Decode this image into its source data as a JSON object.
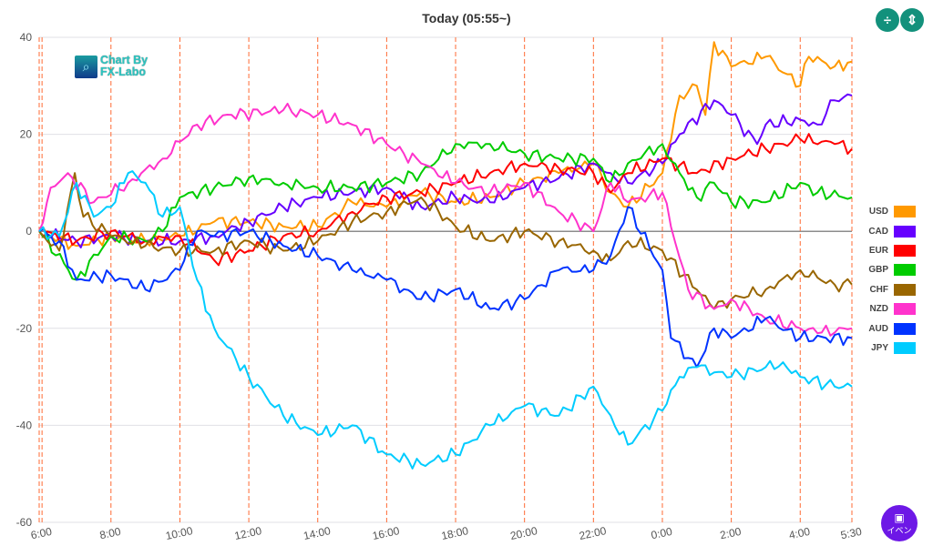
{
  "header": {
    "title": "Today  (05:55~)"
  },
  "toolbar": {
    "compress_icon": "compress-vertical-icon",
    "expand_icon": "expand-vertical-icon"
  },
  "logo": {
    "line1": "Chart By",
    "line2": "FX-Labo"
  },
  "event_button": {
    "label": "イベン",
    "icon": "calendar-icon",
    "color": "#6d18e6"
  },
  "chart_data": {
    "type": "line",
    "title": "Today  (05:55~)",
    "xlabel": "",
    "ylabel": "",
    "x_unit": "hours since 6:00",
    "xlim": [
      -0.083,
      23.5
    ],
    "ylim": [
      -60,
      40
    ],
    "yticks": [
      40,
      20,
      0,
      -20,
      -40,
      -60
    ],
    "xticks": [
      {
        "x": 0,
        "label": "6:00"
      },
      {
        "x": 2,
        "label": "8:00"
      },
      {
        "x": 4,
        "label": "10:00"
      },
      {
        "x": 6,
        "label": "12:00"
      },
      {
        "x": 8,
        "label": "14:00"
      },
      {
        "x": 10,
        "label": "16:00"
      },
      {
        "x": 12,
        "label": "18:00"
      },
      {
        "x": 14,
        "label": "20:00"
      },
      {
        "x": 16,
        "label": "22:00"
      },
      {
        "x": 18,
        "label": "0:00"
      },
      {
        "x": 20,
        "label": "2:00"
      },
      {
        "x": 22,
        "label": "4:00"
      },
      {
        "x": 23.5,
        "label": "5:30"
      }
    ],
    "grid": true,
    "legend_position": "right",
    "series": [
      {
        "name": "USD",
        "color": "#ff9900",
        "points": [
          [
            -0.083,
            0
          ],
          [
            1,
            -3
          ],
          [
            2,
            -1
          ],
          [
            3,
            -2
          ],
          [
            4,
            -1
          ],
          [
            5,
            2
          ],
          [
            6,
            2
          ],
          [
            7,
            1
          ],
          [
            8,
            1
          ],
          [
            9,
            6
          ],
          [
            10,
            5
          ],
          [
            11,
            8
          ],
          [
            12,
            6
          ],
          [
            13,
            7
          ],
          [
            14,
            10
          ],
          [
            15,
            12
          ],
          [
            16,
            14
          ],
          [
            16.5,
            8
          ],
          [
            17,
            5
          ],
          [
            18,
            12
          ],
          [
            18.5,
            28
          ],
          [
            19,
            30
          ],
          [
            19.25,
            24
          ],
          [
            19.5,
            39
          ],
          [
            20,
            34
          ],
          [
            21,
            36
          ],
          [
            22,
            30
          ],
          [
            22.25,
            36
          ],
          [
            23,
            34
          ],
          [
            23.5,
            35
          ]
        ]
      },
      {
        "name": "CAD",
        "color": "#6600ff",
        "points": [
          [
            -0.083,
            0
          ],
          [
            1,
            -2
          ],
          [
            2,
            -1
          ],
          [
            3,
            -2
          ],
          [
            4,
            -2
          ],
          [
            5,
            -1
          ],
          [
            6,
            2
          ],
          [
            7,
            5
          ],
          [
            8,
            7
          ],
          [
            9,
            8
          ],
          [
            10,
            9
          ],
          [
            11,
            5
          ],
          [
            12,
            7
          ],
          [
            13,
            6
          ],
          [
            14,
            9
          ],
          [
            15,
            11
          ],
          [
            16,
            14
          ],
          [
            16.5,
            12
          ],
          [
            17,
            10
          ],
          [
            18,
            14
          ],
          [
            18.5,
            20
          ],
          [
            19.5,
            27
          ],
          [
            20,
            24
          ],
          [
            20.75,
            18
          ],
          [
            21,
            22
          ],
          [
            22,
            23
          ],
          [
            22.5,
            22
          ],
          [
            23,
            27
          ],
          [
            23.5,
            28
          ]
        ]
      },
      {
        "name": "EUR",
        "color": "#ff0000",
        "points": [
          [
            -0.083,
            0
          ],
          [
            1,
            -2
          ],
          [
            2,
            0
          ],
          [
            3,
            -2
          ],
          [
            4,
            -1
          ],
          [
            5,
            -6
          ],
          [
            6,
            -4
          ],
          [
            7,
            -1
          ],
          [
            8,
            0
          ],
          [
            9,
            4
          ],
          [
            10,
            7
          ],
          [
            11,
            8
          ],
          [
            12,
            10
          ],
          [
            13,
            12
          ],
          [
            14,
            14
          ],
          [
            15,
            13
          ],
          [
            16,
            12
          ],
          [
            16.5,
            8
          ],
          [
            17,
            12
          ],
          [
            18,
            15
          ],
          [
            19,
            12
          ],
          [
            20,
            15
          ],
          [
            21,
            17
          ],
          [
            22,
            19
          ],
          [
            23,
            18
          ],
          [
            23.5,
            17
          ]
        ]
      },
      {
        "name": "GBP",
        "color": "#00cc00",
        "points": [
          [
            -0.083,
            0
          ],
          [
            1,
            -10
          ],
          [
            2,
            -1
          ],
          [
            3,
            -2
          ],
          [
            3.5,
            0
          ],
          [
            4,
            7
          ],
          [
            5,
            9
          ],
          [
            6,
            11
          ],
          [
            7,
            10
          ],
          [
            8,
            9
          ],
          [
            9,
            9
          ],
          [
            10,
            10
          ],
          [
            11,
            12
          ],
          [
            12,
            18
          ],
          [
            13,
            18
          ],
          [
            14,
            16
          ],
          [
            15,
            15
          ],
          [
            16,
            15
          ],
          [
            16.5,
            10
          ],
          [
            17,
            14
          ],
          [
            18,
            18
          ],
          [
            18.5,
            12
          ],
          [
            19,
            7
          ],
          [
            19.5,
            10
          ],
          [
            20,
            6
          ],
          [
            21,
            6
          ],
          [
            22,
            10
          ],
          [
            22.5,
            8
          ],
          [
            23.5,
            7
          ]
        ]
      },
      {
        "name": "CHF",
        "color": "#996600",
        "points": [
          [
            -0.083,
            0
          ],
          [
            0.5,
            -4
          ],
          [
            0.95,
            12
          ],
          [
            1.2,
            3
          ],
          [
            2,
            -1
          ],
          [
            3,
            -3
          ],
          [
            4,
            -4
          ],
          [
            5,
            -4
          ],
          [
            6,
            -2
          ],
          [
            7,
            -4
          ],
          [
            8,
            -2
          ],
          [
            9,
            2
          ],
          [
            10,
            4
          ],
          [
            11,
            7
          ],
          [
            12,
            1
          ],
          [
            13,
            -2
          ],
          [
            14,
            0
          ],
          [
            15,
            -2
          ],
          [
            16,
            -4
          ],
          [
            16.5,
            -6
          ],
          [
            17,
            -2
          ],
          [
            18,
            -4
          ],
          [
            19,
            -12
          ],
          [
            19.5,
            -16
          ],
          [
            20,
            -14
          ],
          [
            21,
            -12
          ],
          [
            22,
            -8
          ],
          [
            23,
            -11
          ],
          [
            23.5,
            -11
          ]
        ]
      },
      {
        "name": "NZD",
        "color": "#ff33cc",
        "points": [
          [
            -0.083,
            0
          ],
          [
            0.25,
            9
          ],
          [
            0.75,
            12
          ],
          [
            1.5,
            6
          ],
          [
            2.5,
            10
          ],
          [
            3.5,
            15
          ],
          [
            4.5,
            22
          ],
          [
            5.5,
            24
          ],
          [
            7,
            25
          ],
          [
            8,
            24
          ],
          [
            9,
            22
          ],
          [
            10,
            18
          ],
          [
            11,
            14
          ],
          [
            12,
            10
          ],
          [
            13,
            8
          ],
          [
            14,
            10
          ],
          [
            15,
            4
          ],
          [
            16,
            0
          ],
          [
            16.5,
            10
          ],
          [
            17,
            6
          ],
          [
            18,
            8
          ],
          [
            18.75,
            -12
          ],
          [
            19.5,
            -16
          ],
          [
            20,
            -14
          ],
          [
            21,
            -18
          ],
          [
            22,
            -20
          ],
          [
            22.5,
            -21
          ],
          [
            23.5,
            -20
          ]
        ]
      },
      {
        "name": "AUD",
        "color": "#0033ff",
        "points": [
          [
            -0.083,
            0
          ],
          [
            0.5,
            -2
          ],
          [
            1,
            -10
          ],
          [
            2,
            -9
          ],
          [
            3,
            -12
          ],
          [
            4,
            -8
          ],
          [
            4.5,
            0
          ],
          [
            5,
            -1
          ],
          [
            6,
            0
          ],
          [
            7,
            -3
          ],
          [
            8,
            -5
          ],
          [
            9,
            -8
          ],
          [
            10,
            -10
          ],
          [
            11,
            -14
          ],
          [
            12,
            -12
          ],
          [
            13,
            -16
          ],
          [
            14,
            -14
          ],
          [
            15,
            -8
          ],
          [
            16,
            -8
          ],
          [
            16.5,
            -5
          ],
          [
            17,
            5
          ],
          [
            18,
            -8
          ],
          [
            18.25,
            -22
          ],
          [
            19,
            -28
          ],
          [
            19.5,
            -20
          ],
          [
            20,
            -22
          ],
          [
            21,
            -18
          ],
          [
            22,
            -22
          ],
          [
            23.5,
            -22
          ]
        ]
      },
      {
        "name": "JPY",
        "color": "#00ccff",
        "points": [
          [
            -0.083,
            0
          ],
          [
            0.5,
            -1
          ],
          [
            1,
            10
          ],
          [
            1.5,
            3
          ],
          [
            2,
            5
          ],
          [
            2.5,
            12
          ],
          [
            3,
            10
          ],
          [
            3.5,
            3
          ],
          [
            4,
            5
          ],
          [
            4.5,
            -10
          ],
          [
            5,
            -20
          ],
          [
            6,
            -30
          ],
          [
            7,
            -38
          ],
          [
            8,
            -42
          ],
          [
            9,
            -40
          ],
          [
            10,
            -46
          ],
          [
            11,
            -48
          ],
          [
            12,
            -46
          ],
          [
            13,
            -40
          ],
          [
            14,
            -36
          ],
          [
            15,
            -38
          ],
          [
            16,
            -32
          ],
          [
            16.5,
            -38
          ],
          [
            17,
            -44
          ],
          [
            18,
            -37
          ],
          [
            18.5,
            -30
          ],
          [
            19,
            -28
          ],
          [
            20,
            -30
          ],
          [
            21,
            -28
          ],
          [
            21.5,
            -27
          ],
          [
            22,
            -30
          ],
          [
            23,
            -32
          ],
          [
            23.5,
            -32
          ]
        ]
      }
    ]
  }
}
